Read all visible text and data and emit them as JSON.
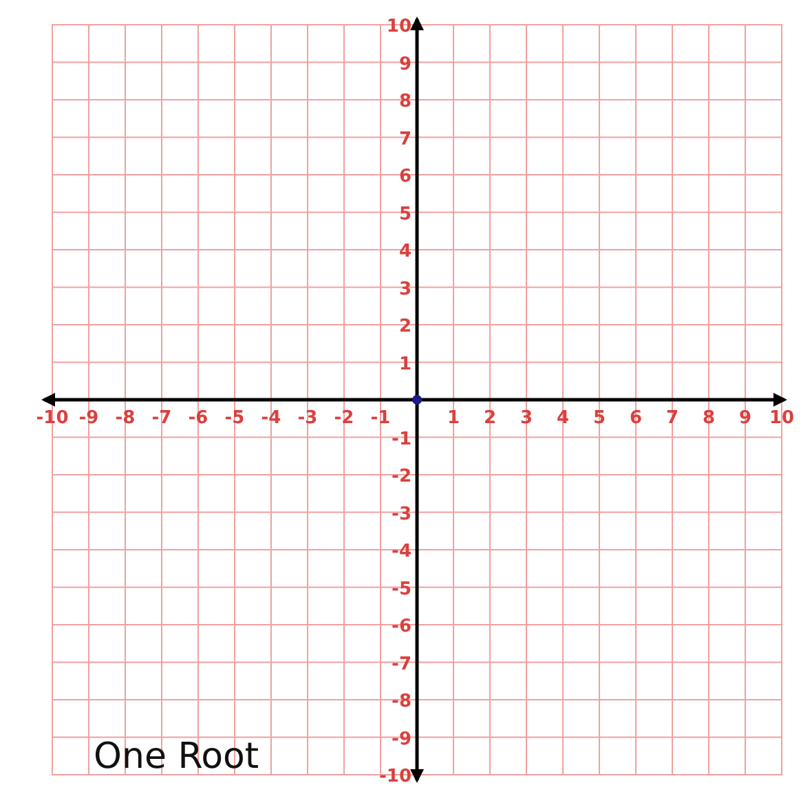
{
  "chart_data": {
    "type": "scatter",
    "x": [
      0
    ],
    "values": [
      0
    ],
    "color": "#1c1c8c",
    "marker": "circle",
    "xlim": [
      -10,
      10
    ],
    "ylim": [
      -10,
      10
    ],
    "xticks": [
      -10,
      -9,
      -8,
      -7,
      -6,
      -5,
      -4,
      -3,
      -2,
      -1,
      1,
      2,
      3,
      4,
      5,
      6,
      7,
      8,
      9,
      10
    ],
    "yticks": [
      -10,
      -9,
      -8,
      -7,
      -6,
      -5,
      -4,
      -3,
      -2,
      -1,
      1,
      2,
      3,
      4,
      5,
      6,
      7,
      8,
      9,
      10
    ],
    "grid": true,
    "annotations": [
      "One Root"
    ]
  }
}
